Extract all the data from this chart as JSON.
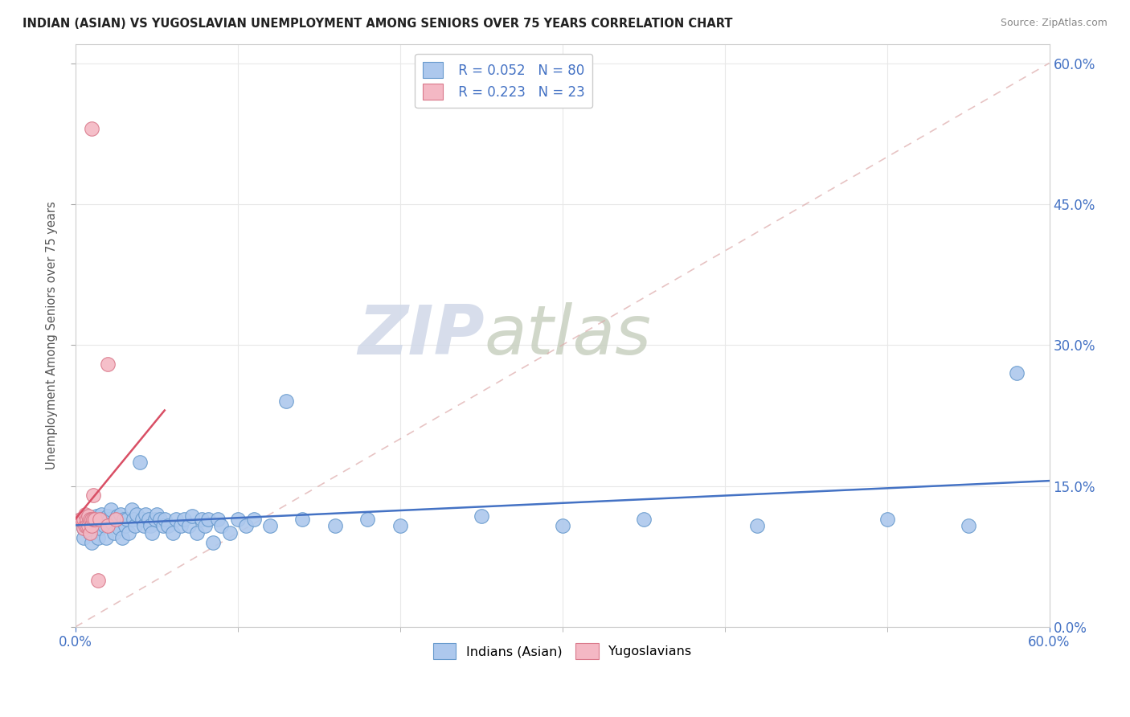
{
  "title": "INDIAN (ASIAN) VS YUGOSLAVIAN UNEMPLOYMENT AMONG SENIORS OVER 75 YEARS CORRELATION CHART",
  "source": "Source: ZipAtlas.com",
  "ylabel": "Unemployment Among Seniors over 75 years",
  "legend_r1": "R = 0.052",
  "legend_n1": "N = 80",
  "legend_r2": "R = 0.223",
  "legend_n2": "N = 23",
  "legend_label1": "Indians (Asian)",
  "legend_label2": "Yugoslavians",
  "watermark_zip": "ZIP",
  "watermark_atlas": "atlas",
  "blue_fill": "#adc8ed",
  "blue_edge": "#6699cc",
  "pink_fill": "#f4b8c4",
  "pink_edge": "#d9788a",
  "blue_line": "#4472c4",
  "pink_line": "#d94f65",
  "diag_color": "#cccccc",
  "axis_color": "#4472c4",
  "grid_color": "#e8e8e8",
  "title_color": "#222222",
  "source_color": "#888888",
  "ylabel_color": "#555555",
  "blue_scatter": [
    [
      0.005,
      0.115
    ],
    [
      0.005,
      0.105
    ],
    [
      0.005,
      0.095
    ],
    [
      0.007,
      0.118
    ],
    [
      0.008,
      0.108
    ],
    [
      0.009,
      0.1
    ],
    [
      0.01,
      0.115
    ],
    [
      0.01,
      0.1
    ],
    [
      0.01,
      0.09
    ],
    [
      0.012,
      0.115
    ],
    [
      0.012,
      0.108
    ],
    [
      0.013,
      0.118
    ],
    [
      0.014,
      0.095
    ],
    [
      0.015,
      0.115
    ],
    [
      0.015,
      0.105
    ],
    [
      0.016,
      0.12
    ],
    [
      0.017,
      0.115
    ],
    [
      0.018,
      0.108
    ],
    [
      0.019,
      0.095
    ],
    [
      0.02,
      0.118
    ],
    [
      0.021,
      0.115
    ],
    [
      0.022,
      0.125
    ],
    [
      0.023,
      0.11
    ],
    [
      0.024,
      0.1
    ],
    [
      0.025,
      0.115
    ],
    [
      0.026,
      0.118
    ],
    [
      0.027,
      0.105
    ],
    [
      0.028,
      0.12
    ],
    [
      0.029,
      0.095
    ],
    [
      0.03,
      0.115
    ],
    [
      0.031,
      0.108
    ],
    [
      0.032,
      0.115
    ],
    [
      0.033,
      0.1
    ],
    [
      0.035,
      0.125
    ],
    [
      0.036,
      0.115
    ],
    [
      0.037,
      0.108
    ],
    [
      0.038,
      0.12
    ],
    [
      0.04,
      0.175
    ],
    [
      0.041,
      0.115
    ],
    [
      0.042,
      0.108
    ],
    [
      0.043,
      0.12
    ],
    [
      0.045,
      0.115
    ],
    [
      0.046,
      0.108
    ],
    [
      0.047,
      0.1
    ],
    [
      0.049,
      0.115
    ],
    [
      0.05,
      0.12
    ],
    [
      0.052,
      0.115
    ],
    [
      0.054,
      0.108
    ],
    [
      0.055,
      0.115
    ],
    [
      0.057,
      0.108
    ],
    [
      0.06,
      0.1
    ],
    [
      0.062,
      0.115
    ],
    [
      0.065,
      0.108
    ],
    [
      0.067,
      0.115
    ],
    [
      0.07,
      0.108
    ],
    [
      0.072,
      0.118
    ],
    [
      0.075,
      0.1
    ],
    [
      0.078,
      0.115
    ],
    [
      0.08,
      0.108
    ],
    [
      0.082,
      0.115
    ],
    [
      0.085,
      0.09
    ],
    [
      0.088,
      0.115
    ],
    [
      0.09,
      0.108
    ],
    [
      0.095,
      0.1
    ],
    [
      0.1,
      0.115
    ],
    [
      0.105,
      0.108
    ],
    [
      0.11,
      0.115
    ],
    [
      0.12,
      0.108
    ],
    [
      0.13,
      0.24
    ],
    [
      0.14,
      0.115
    ],
    [
      0.16,
      0.108
    ],
    [
      0.18,
      0.115
    ],
    [
      0.2,
      0.108
    ],
    [
      0.25,
      0.118
    ],
    [
      0.3,
      0.108
    ],
    [
      0.35,
      0.115
    ],
    [
      0.42,
      0.108
    ],
    [
      0.5,
      0.115
    ],
    [
      0.55,
      0.108
    ],
    [
      0.58,
      0.27
    ]
  ],
  "pink_scatter": [
    [
      0.003,
      0.115
    ],
    [
      0.004,
      0.115
    ],
    [
      0.005,
      0.115
    ],
    [
      0.005,
      0.105
    ],
    [
      0.006,
      0.12
    ],
    [
      0.006,
      0.108
    ],
    [
      0.007,
      0.115
    ],
    [
      0.007,
      0.108
    ],
    [
      0.008,
      0.118
    ],
    [
      0.008,
      0.108
    ],
    [
      0.009,
      0.115
    ],
    [
      0.009,
      0.1
    ],
    [
      0.01,
      0.115
    ],
    [
      0.01,
      0.108
    ],
    [
      0.011,
      0.14
    ],
    [
      0.011,
      0.115
    ],
    [
      0.012,
      0.115
    ],
    [
      0.014,
      0.05
    ],
    [
      0.015,
      0.115
    ],
    [
      0.02,
      0.28
    ],
    [
      0.01,
      0.53
    ],
    [
      0.02,
      0.108
    ],
    [
      0.025,
      0.115
    ]
  ],
  "xlim": [
    0.0,
    0.6
  ],
  "ylim": [
    0.0,
    0.62
  ],
  "xtick_positions": [
    0.0,
    0.6
  ],
  "xtick_labels": [
    "0.0%",
    "60.0%"
  ],
  "ytick_positions": [
    0.0,
    0.15,
    0.3,
    0.45,
    0.6
  ],
  "ytick_labels": [
    "0.0%",
    "15.0%",
    "30.0%",
    "45.0%",
    "60.0%"
  ]
}
